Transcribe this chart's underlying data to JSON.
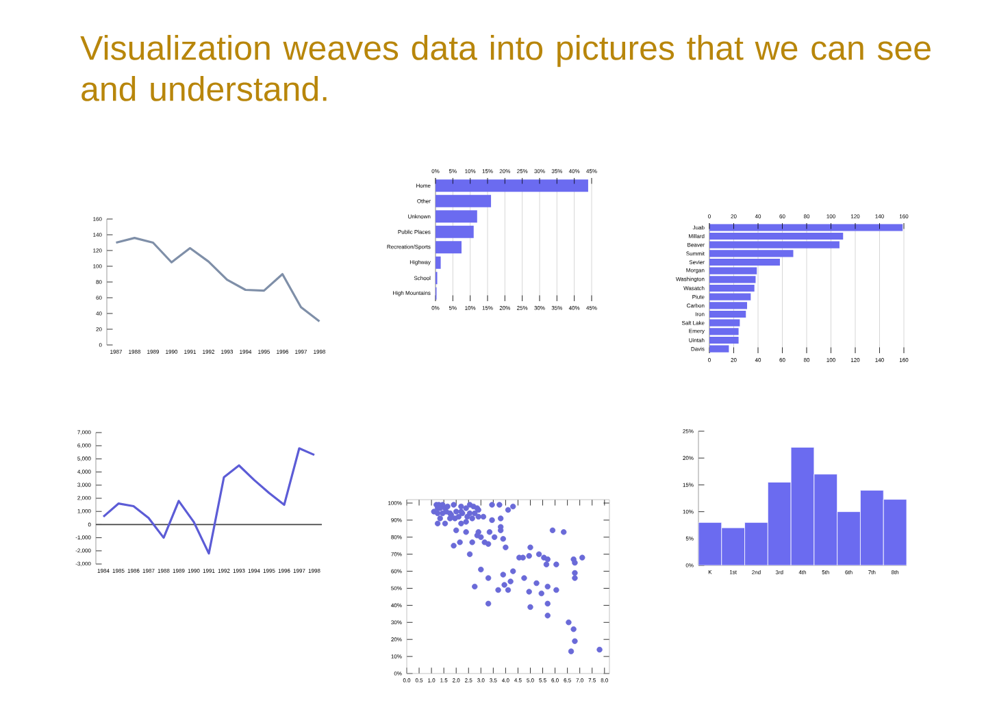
{
  "chart_data": [
    {
      "type": "line",
      "title": "Visualization weaves data into pictures that we can see and understand.",
      "categories": [
        "1987",
        "1988",
        "1989",
        "1990",
        "1991",
        "1992",
        "1993",
        "1994",
        "1995",
        "1996",
        "1997",
        "1998"
      ],
      "values": [
        130,
        136,
        130,
        105,
        123,
        106,
        83,
        70,
        69,
        90,
        48,
        30
      ],
      "color": "#7f8fa8",
      "ylim": [
        0,
        160
      ],
      "yticks": [
        0,
        20,
        40,
        60,
        80,
        100,
        120,
        140,
        160
      ]
    },
    {
      "type": "bar",
      "orientation": "horizontal",
      "grid": "x",
      "categories": [
        "Home",
        "Other",
        "Unknown",
        "Public Places",
        "Recreation/Sports",
        "Highway",
        "School",
        "High Mountains"
      ],
      "values": [
        44,
        16,
        12,
        11,
        7.5,
        1.5,
        0.5,
        0.3
      ],
      "color": "#6b6bf0",
      "xlim": [
        0,
        45
      ],
      "xticks": [
        {
          "value": 0,
          "label": "0%"
        },
        {
          "value": 5,
          "label": "5%"
        },
        {
          "value": 10,
          "label": "10%"
        },
        {
          "value": 15,
          "label": "15%"
        },
        {
          "value": 20,
          "label": "20%"
        },
        {
          "value": 25,
          "label": "25%"
        },
        {
          "value": 30,
          "label": "30%"
        },
        {
          "value": 35,
          "label": "35%"
        },
        {
          "value": 40,
          "label": "40%"
        },
        {
          "value": 45,
          "label": "45%"
        }
      ],
      "x2lim": [
        0,
        45
      ],
      "x2ticks": [
        {
          "value": 0,
          "label": "0%"
        },
        {
          "value": 5,
          "label": "5%"
        },
        {
          "value": 10,
          "label": "10%"
        },
        {
          "value": 15,
          "label": "15%"
        },
        {
          "value": 20,
          "label": "20%"
        },
        {
          "value": 25,
          "label": "25%"
        },
        {
          "value": 30,
          "label": "30%"
        },
        {
          "value": 35,
          "label": "35%"
        },
        {
          "value": 40,
          "label": "40%"
        },
        {
          "value": 45,
          "label": "45%"
        }
      ]
    },
    {
      "type": "bar",
      "orientation": "horizontal",
      "grid": "x",
      "categories": [
        "Juab",
        "Millard",
        "Beaver",
        "Summit",
        "Sevier",
        "Morgan",
        "Washington",
        "Wasatch",
        "Piute",
        "Carbon",
        "Iron",
        "Salt Lake",
        "Emery",
        "Uintah",
        "Davis"
      ],
      "values": [
        159,
        110,
        107,
        69,
        58,
        39,
        38,
        37,
        34,
        31,
        30,
        25,
        24,
        24,
        16
      ],
      "color": "#6b6bf0",
      "xlim": [
        0,
        160
      ],
      "xticks": [
        0,
        20,
        40,
        60,
        80,
        100,
        120,
        140,
        160
      ],
      "x2lim": [
        0,
        160
      ],
      "x2ticks": [
        0,
        20,
        40,
        60,
        80,
        100,
        120,
        140,
        160
      ]
    },
    {
      "type": "line",
      "categories": [
        "1984",
        "1985",
        "1986",
        "1987",
        "1988",
        "1989",
        "1990",
        "1991",
        "1992",
        "1993",
        "1994",
        "1995",
        "1996",
        "1997",
        "1998"
      ],
      "values": [
        600,
        1600,
        1400,
        500,
        -1000,
        1800,
        200,
        -2200,
        3600,
        4500,
        3400,
        2400,
        1500,
        5800,
        5300
      ],
      "color": "#5c5cd6",
      "ylim": [
        -3000,
        7000
      ],
      "yticks": [
        {
          "value": -3000,
          "label": "-3,000"
        },
        {
          "value": -2000,
          "label": "-2,000"
        },
        {
          "value": -1000,
          "label": "-1,000"
        },
        0,
        {
          "value": 1000,
          "label": "1,000"
        },
        {
          "value": 2000,
          "label": "2,000"
        },
        {
          "value": 3000,
          "label": "3,000"
        },
        {
          "value": 4000,
          "label": "4,000"
        },
        {
          "value": 5000,
          "label": "5,000"
        },
        {
          "value": 6000,
          "label": "6,000"
        },
        {
          "value": 7000,
          "label": "7,000"
        }
      ],
      "ref_lines": [
        {
          "axis": "y",
          "value": 0,
          "color": "#444444"
        }
      ]
    },
    {
      "type": "scatter",
      "color": "#6a6ad8",
      "xlim": [
        0,
        8.2
      ],
      "ylim": [
        0,
        102
      ],
      "xticks": [
        {
          "value": 0,
          "label": "0.0"
        },
        {
          "value": 0.5,
          "label": "0.5"
        },
        {
          "value": 1,
          "label": "1.0"
        },
        {
          "value": 1.5,
          "label": "1.5"
        },
        {
          "value": 2,
          "label": "2.0"
        },
        {
          "value": 2.5,
          "label": "2.5"
        },
        {
          "value": 3,
          "label": "3.0"
        },
        {
          "value": 3.5,
          "label": "3.5"
        },
        {
          "value": 4,
          "label": "4.0"
        },
        {
          "value": 4.5,
          "label": "4.5"
        },
        {
          "value": 5,
          "label": "5.0"
        },
        {
          "value": 5.5,
          "label": "5.5"
        },
        {
          "value": 6,
          "label": "6.0"
        },
        {
          "value": 6.5,
          "label": "6.5"
        },
        {
          "value": 7,
          "label": "7.0"
        },
        {
          "value": 7.5,
          "label": "7.5"
        },
        {
          "value": 8,
          "label": "8.0"
        }
      ],
      "yticks": [
        {
          "value": 0,
          "label": "0%"
        },
        {
          "value": 10,
          "label": "10%"
        },
        {
          "value": 20,
          "label": "20%"
        },
        {
          "value": 30,
          "label": "30%"
        },
        {
          "value": 40,
          "label": "40%"
        },
        {
          "value": 50,
          "label": "50%"
        },
        {
          "value": 60,
          "label": "60%"
        },
        {
          "value": 70,
          "label": "70%"
        },
        {
          "value": 80,
          "label": "80%"
        },
        {
          "value": 90,
          "label": "90%"
        },
        {
          "value": 100,
          "label": "100%"
        }
      ],
      "x": [
        1.2,
        1.3,
        1.45,
        1.25,
        1.35,
        1.55,
        1.65,
        1.1,
        1.25,
        1.45,
        1.6,
        1.9,
        2.2,
        2.4,
        2.55,
        2.7,
        2.85,
        2.0,
        1.8,
        2.25,
        2.45,
        2.65,
        2.9,
        3.1,
        2.4,
        2.2,
        1.55,
        1.75,
        1.95,
        2.1,
        3.45,
        3.75,
        4.1,
        4.3,
        3.45,
        3.8,
        3.8,
        3.8,
        2.0,
        2.4,
        2.9,
        3.35,
        3.0,
        2.85,
        3.15,
        3.3,
        3.55,
        3.9,
        2.65,
        1.9,
        2.15,
        2.55,
        4.0,
        1.25,
        1.35,
        1.75,
        2.2,
        2.55,
        2.75,
        2.9,
        5.9,
        6.35,
        5.0,
        4.55,
        4.7,
        4.95,
        5.35,
        5.55,
        5.7,
        5.65,
        6.05,
        6.75,
        6.8,
        7.1,
        3.0,
        3.3,
        2.75,
        3.9,
        4.3,
        3.95,
        4.2,
        3.7,
        4.1,
        4.75,
        4.95,
        5.25,
        5.45,
        5.7,
        6.05,
        5.0,
        5.7,
        5.7,
        3.3,
        6.55,
        6.75,
        6.8,
        6.65,
        6.8,
        6.8,
        7.8
      ],
      "values": [
        99,
        99,
        99,
        97,
        97,
        97,
        98,
        95,
        94,
        94,
        95,
        99,
        98,
        97,
        99,
        98,
        97,
        95,
        93,
        94,
        92,
        91,
        92,
        92,
        89,
        88,
        88,
        91,
        91,
        92,
        99,
        99,
        96,
        98,
        90,
        91,
        86,
        84,
        84,
        83,
        83,
        83,
        80,
        81,
        77,
        76,
        80,
        79,
        77,
        75,
        77,
        70,
        74,
        88,
        91,
        94,
        95,
        94,
        94,
        96,
        84,
        83,
        74,
        68,
        68,
        69,
        70,
        68,
        67,
        64,
        64,
        67,
        65,
        68,
        61,
        56,
        51,
        58,
        60,
        52,
        54,
        49,
        49,
        56,
        48,
        53,
        47,
        51,
        49,
        39,
        41,
        34,
        41,
        30,
        26,
        19,
        13,
        59,
        56,
        14
      ]
    },
    {
      "type": "bar",
      "categories": [
        "K",
        "1st",
        "2nd",
        "3rd",
        "4th",
        "5th",
        "6th",
        "7th",
        "8th"
      ],
      "values": [
        8,
        7,
        8,
        15.5,
        22,
        17,
        10,
        14,
        12.3
      ],
      "color": "#6b6bf0",
      "ylim": [
        0,
        25
      ],
      "yticks": [
        {
          "value": 0,
          "label": "0%"
        },
        {
          "value": 5,
          "label": "5%"
        },
        {
          "value": 10,
          "label": "10%"
        },
        {
          "value": 15,
          "label": "15%"
        },
        {
          "value": 20,
          "label": "20%"
        },
        {
          "value": 25,
          "label": "25%"
        }
      ]
    }
  ]
}
